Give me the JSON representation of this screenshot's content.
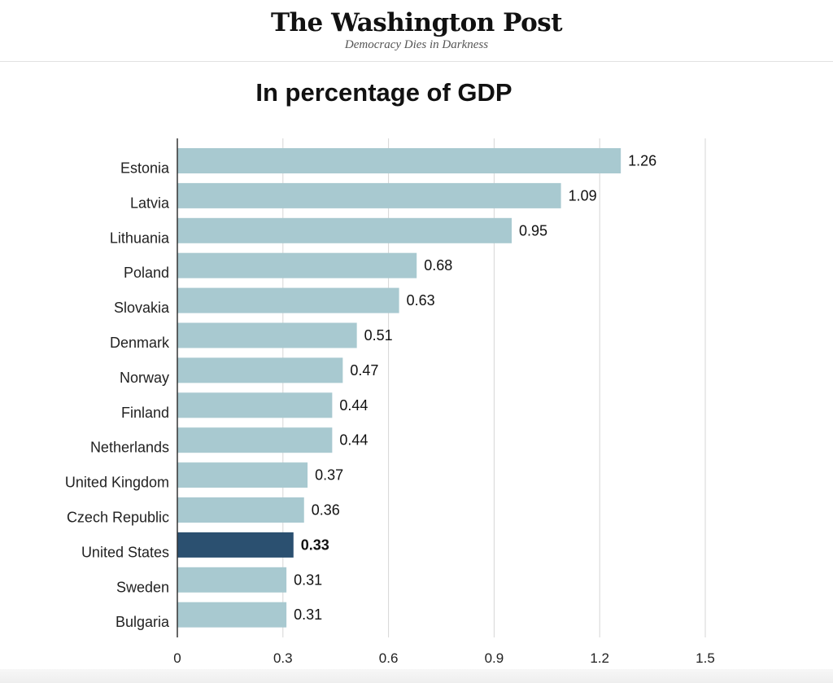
{
  "masthead": {
    "logo": "The Washington Post",
    "tagline": "Democracy Dies in Darkness"
  },
  "chart_data": {
    "type": "bar",
    "orientation": "horizontal",
    "title": "In percentage of GDP",
    "categories": [
      "Estonia",
      "Latvia",
      "Lithuania",
      "Poland",
      "Slovakia",
      "Denmark",
      "Norway",
      "Finland",
      "Netherlands",
      "United Kingdom",
      "Czech Republic",
      "United States",
      "Sweden",
      "Bulgaria"
    ],
    "values": [
      1.26,
      1.09,
      0.95,
      0.68,
      0.63,
      0.51,
      0.47,
      0.44,
      0.44,
      0.37,
      0.36,
      0.33,
      0.31,
      0.31
    ],
    "value_labels": [
      "1.26",
      "1.09",
      "0.95",
      "0.68",
      "0.63",
      "0.51",
      "0.47",
      "0.44",
      "0.44",
      "0.37",
      "0.36",
      "0.33",
      "0.31",
      "0.31"
    ],
    "highlight": "United States",
    "xlim": [
      0,
      1.5
    ],
    "xticks": [
      0,
      0.3,
      0.6,
      0.9,
      1.2,
      1.5
    ],
    "xtick_labels": [
      "0",
      "0.3",
      "0.6",
      "0.9",
      "1.2",
      "1.5"
    ],
    "grid": true,
    "colors": {
      "bar": "#a8c9d0",
      "highlight": "#2b5070",
      "grid": "#d6d6d6",
      "axis": "#333333"
    }
  }
}
